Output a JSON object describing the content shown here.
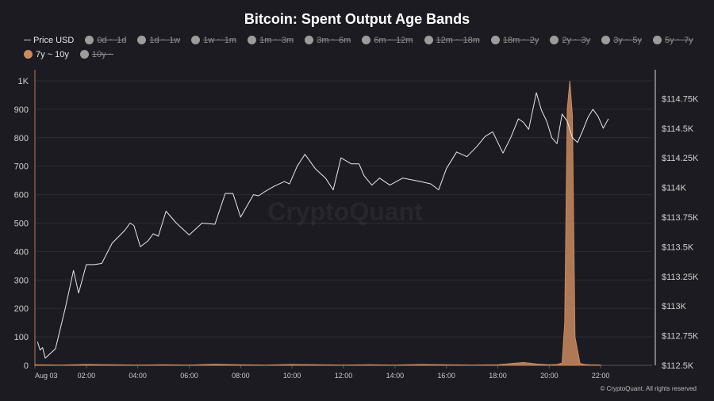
{
  "chart_data": {
    "type": "line",
    "title": "Bitcoin: Spent Output Age Bands",
    "legend": [
      {
        "label": "Price USD",
        "state": "on",
        "kind": "line",
        "color": "#cfcfcf"
      },
      {
        "label": "0d ~ 1d",
        "state": "off"
      },
      {
        "label": "1d ~ 1w",
        "state": "off"
      },
      {
        "label": "1w ~ 1m",
        "state": "off"
      },
      {
        "label": "1m ~ 3m",
        "state": "off"
      },
      {
        "label": "3m ~ 6m",
        "state": "off"
      },
      {
        "label": "6m ~ 12m",
        "state": "off"
      },
      {
        "label": "12m ~ 18m",
        "state": "off"
      },
      {
        "label": "18m ~ 2y",
        "state": "off"
      },
      {
        "label": "2y ~ 3y",
        "state": "off"
      },
      {
        "label": "3y ~ 5y",
        "state": "off"
      },
      {
        "label": "5y ~ 7y",
        "state": "off"
      },
      {
        "label": "7y ~ 10y",
        "state": "on",
        "kind": "dot",
        "color": "#c98a5e"
      },
      {
        "label": "10y ~",
        "state": "off"
      }
    ],
    "x_ticks": [
      "Aug 03",
      "02:00",
      "04:00",
      "06:00",
      "08:00",
      "10:00",
      "12:00",
      "14:00",
      "16:00",
      "18:00",
      "20:00",
      "22:00"
    ],
    "x_range_hours": [
      0,
      24
    ],
    "y_left": {
      "min": 0,
      "max": 1000,
      "ticks": [
        "0",
        "100",
        "200",
        "300",
        "400",
        "500",
        "600",
        "700",
        "800",
        "900",
        "1K"
      ],
      "tick_values": [
        0,
        100,
        200,
        300,
        400,
        500,
        600,
        700,
        800,
        900,
        1000
      ]
    },
    "y_right": {
      "min": 112500,
      "max": 114900,
      "ticks": [
        "$112.5K",
        "$112.75K",
        "$113K",
        "$113.25K",
        "$113.5K",
        "$113.75K",
        "$114K",
        "$114.25K",
        "$114.5K",
        "$114.75K"
      ],
      "tick_values": [
        112500,
        112750,
        113000,
        113250,
        113500,
        113750,
        114000,
        114250,
        114500,
        114750
      ]
    },
    "series": [
      {
        "name": "Price USD",
        "axis": "right",
        "color": "#e8e8e8",
        "x": [
          0.1,
          0.2,
          0.3,
          0.4,
          0.5,
          0.8,
          1.2,
          1.5,
          1.7,
          2.0,
          2.3,
          2.6,
          3.0,
          3.5,
          3.7,
          3.85,
          4.1,
          4.4,
          4.6,
          4.8,
          5.1,
          5.5,
          6.0,
          6.5,
          7.0,
          7.4,
          7.7,
          8.0,
          8.5,
          8.7,
          8.9,
          9.3,
          9.7,
          9.9,
          10.2,
          10.5,
          10.9,
          11.3,
          11.6,
          11.9,
          12.3,
          12.6,
          12.8,
          13.1,
          13.4,
          13.8,
          14.3,
          15.0,
          15.4,
          15.7,
          16.0,
          16.4,
          16.8,
          17.2,
          17.5,
          17.8,
          18.2,
          18.5,
          18.8,
          19.0,
          19.2,
          19.5,
          19.7,
          19.9,
          20.1,
          20.3,
          20.5,
          20.7,
          20.9,
          21.1,
          21.3,
          21.5,
          21.7,
          21.9,
          22.1,
          22.3
        ],
        "y": [
          112700,
          112630,
          112650,
          112560,
          112580,
          112640,
          113000,
          113300,
          113110,
          113350,
          113350,
          113360,
          113530,
          113640,
          113700,
          113680,
          113500,
          113550,
          113610,
          113590,
          113800,
          113700,
          113600,
          113700,
          113690,
          113950,
          113950,
          113750,
          113940,
          113930,
          113960,
          114010,
          114050,
          114030,
          114180,
          114280,
          114160,
          114080,
          113980,
          114250,
          114200,
          114200,
          114100,
          114020,
          114080,
          114020,
          114080,
          114050,
          114030,
          113980,
          114160,
          114300,
          114260,
          114350,
          114430,
          114470,
          114290,
          114420,
          114580,
          114550,
          114490,
          114800,
          114650,
          114560,
          114420,
          114370,
          114620,
          114560,
          114420,
          114380,
          114480,
          114590,
          114660,
          114600,
          114500,
          114580
        ]
      },
      {
        "name": "7y ~ 10y",
        "axis": "left",
        "color": "#c98a5e",
        "x": [
          0,
          1,
          2,
          3,
          4,
          5,
          6,
          7,
          8,
          9,
          10,
          11,
          12,
          13,
          14,
          15,
          16,
          17,
          18,
          18.5,
          19,
          19.5,
          20,
          20.3,
          20.5,
          20.6,
          20.7,
          20.8,
          20.9,
          21.0,
          21.2,
          21.4,
          21.6,
          22
        ],
        "y": [
          2,
          1,
          3,
          2,
          1,
          2,
          1,
          4,
          2,
          1,
          3,
          2,
          1,
          2,
          1,
          3,
          2,
          1,
          2,
          6,
          10,
          5,
          2,
          3,
          8,
          150,
          900,
          1000,
          880,
          100,
          6,
          3,
          2,
          1
        ]
      }
    ]
  },
  "watermark": "CryptoQuant",
  "copyright": "© CryptoQuant. All rights reserved"
}
